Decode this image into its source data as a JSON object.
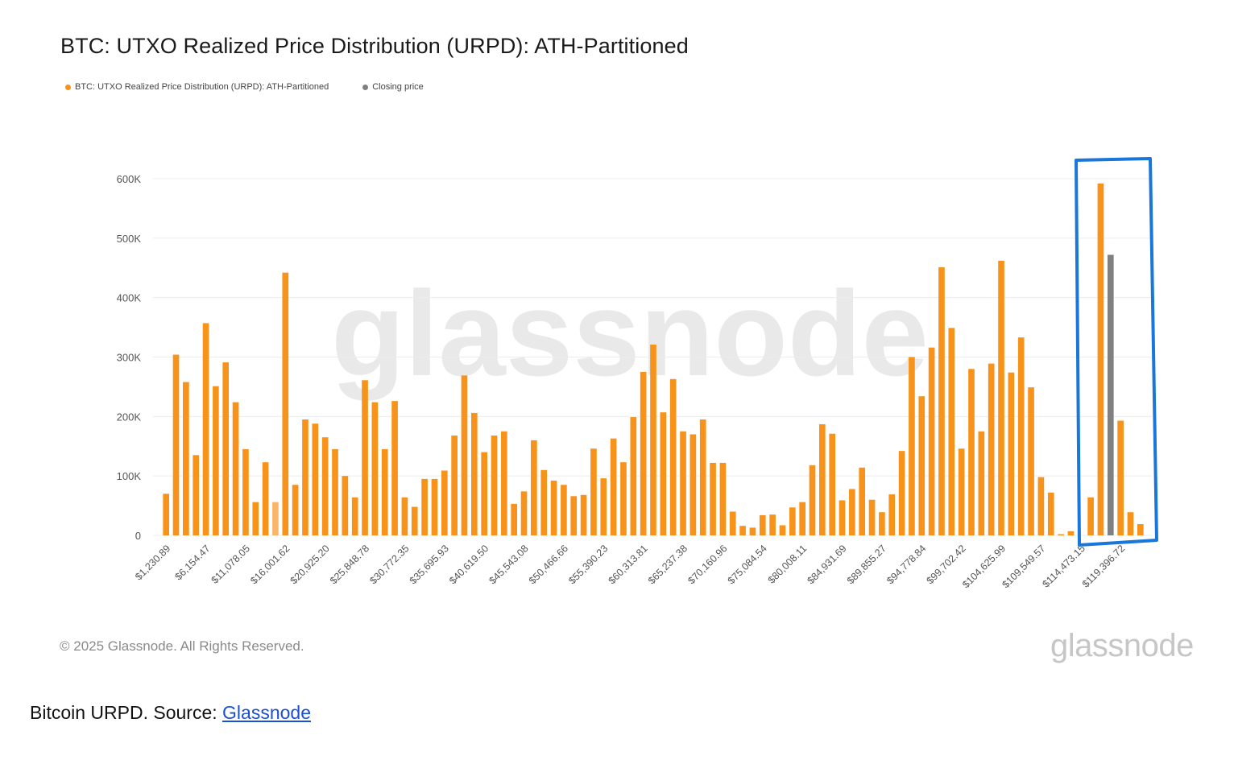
{
  "caption": {
    "text": "Bitcoin URPD. Source: ",
    "link_label": "Glassnode"
  },
  "footer": {
    "copyright": "© 2025 Glassnode. All Rights Reserved.",
    "logo": "glassnode"
  },
  "watermark": "glassnode",
  "colors": {
    "orange": "#f7931a",
    "gray": "#808080",
    "highlight": "#1877d8",
    "grid": "#ececec",
    "axis_text": "#555555"
  },
  "chart_data": {
    "type": "bar",
    "title": "BTC: UTXO Realized Price Distribution (URPD): ATH-Partitioned",
    "xlabel": "",
    "ylabel": "",
    "ylim": [
      0,
      600000
    ],
    "y_ticks": [
      "0",
      "100K",
      "200K",
      "300K",
      "400K",
      "500K",
      "600K"
    ],
    "y_tick_values": [
      0,
      100000,
      200000,
      300000,
      400000,
      500000,
      600000
    ],
    "x_tick_labels": [
      "$1,230.89",
      "$6,154.47",
      "$11,078.05",
      "$16,001.62",
      "$20,925.20",
      "$25,848.78",
      "$30,772.35",
      "$35,695.93",
      "$40,619.50",
      "$45,543.08",
      "$50,466.66",
      "$55,390.23",
      "$60,313.81",
      "$65,237.38",
      "$70,160.96",
      "$75,084.54",
      "$80,008.11",
      "$84,931.69",
      "$89,855.27",
      "$94,778.84",
      "$99,702.42",
      "$104,625.99",
      "$109,549.57",
      "$114,473.15",
      "$119,396.72"
    ],
    "x_tick_every": 4,
    "legend_position": "top-left",
    "grid": true,
    "series": [
      {
        "name": "BTC: UTXO Realized Price Distribution (URPD): ATH-Partitioned",
        "color": "#f7931a",
        "values": [
          70000,
          304000,
          258000,
          135000,
          357000,
          251000,
          291000,
          224000,
          145000,
          56000,
          123000,
          56000,
          442000,
          85000,
          195000,
          188000,
          165000,
          145000,
          100000,
          64000,
          261000,
          224000,
          145000,
          226000,
          64000,
          48000,
          95000,
          95000,
          109000,
          168000,
          269000,
          206000,
          140000,
          168000,
          175000,
          53000,
          74000,
          160000,
          110000,
          92000,
          85000,
          66000,
          68000,
          146000,
          96000,
          163000,
          123000,
          199000,
          275000,
          321000,
          207000,
          263000,
          175000,
          170000,
          195000,
          122000,
          122000,
          40000,
          16000,
          13000,
          34000,
          35000,
          17000,
          47000,
          56000,
          118000,
          187000,
          171000,
          59000,
          78000,
          114000,
          60000,
          39000,
          69000,
          142000,
          300000,
          234000,
          316000,
          451000,
          349000,
          146000,
          280000,
          175000,
          289000,
          462000,
          274000,
          333000,
          249000,
          98000,
          72000,
          2000,
          7000,
          0,
          64000,
          592000,
          0,
          193000,
          39000,
          19000
        ]
      },
      {
        "name": "Closing price",
        "color": "#808080",
        "values": [
          0,
          0,
          0,
          0,
          0,
          0,
          0,
          0,
          0,
          0,
          0,
          0,
          0,
          0,
          0,
          0,
          0,
          0,
          0,
          0,
          0,
          0,
          0,
          0,
          0,
          0,
          0,
          0,
          0,
          0,
          0,
          0,
          0,
          0,
          0,
          0,
          0,
          0,
          0,
          0,
          0,
          0,
          0,
          0,
          0,
          0,
          0,
          0,
          0,
          0,
          0,
          0,
          0,
          0,
          0,
          0,
          0,
          0,
          0,
          0,
          0,
          0,
          0,
          0,
          0,
          0,
          0,
          0,
          0,
          0,
          0,
          0,
          0,
          0,
          0,
          0,
          0,
          0,
          0,
          0,
          0,
          0,
          0,
          0,
          0,
          0,
          0,
          0,
          0,
          0,
          0,
          0,
          0,
          0,
          0,
          472000,
          0,
          0,
          0
        ]
      }
    ],
    "faded_bar_index": 11
  }
}
